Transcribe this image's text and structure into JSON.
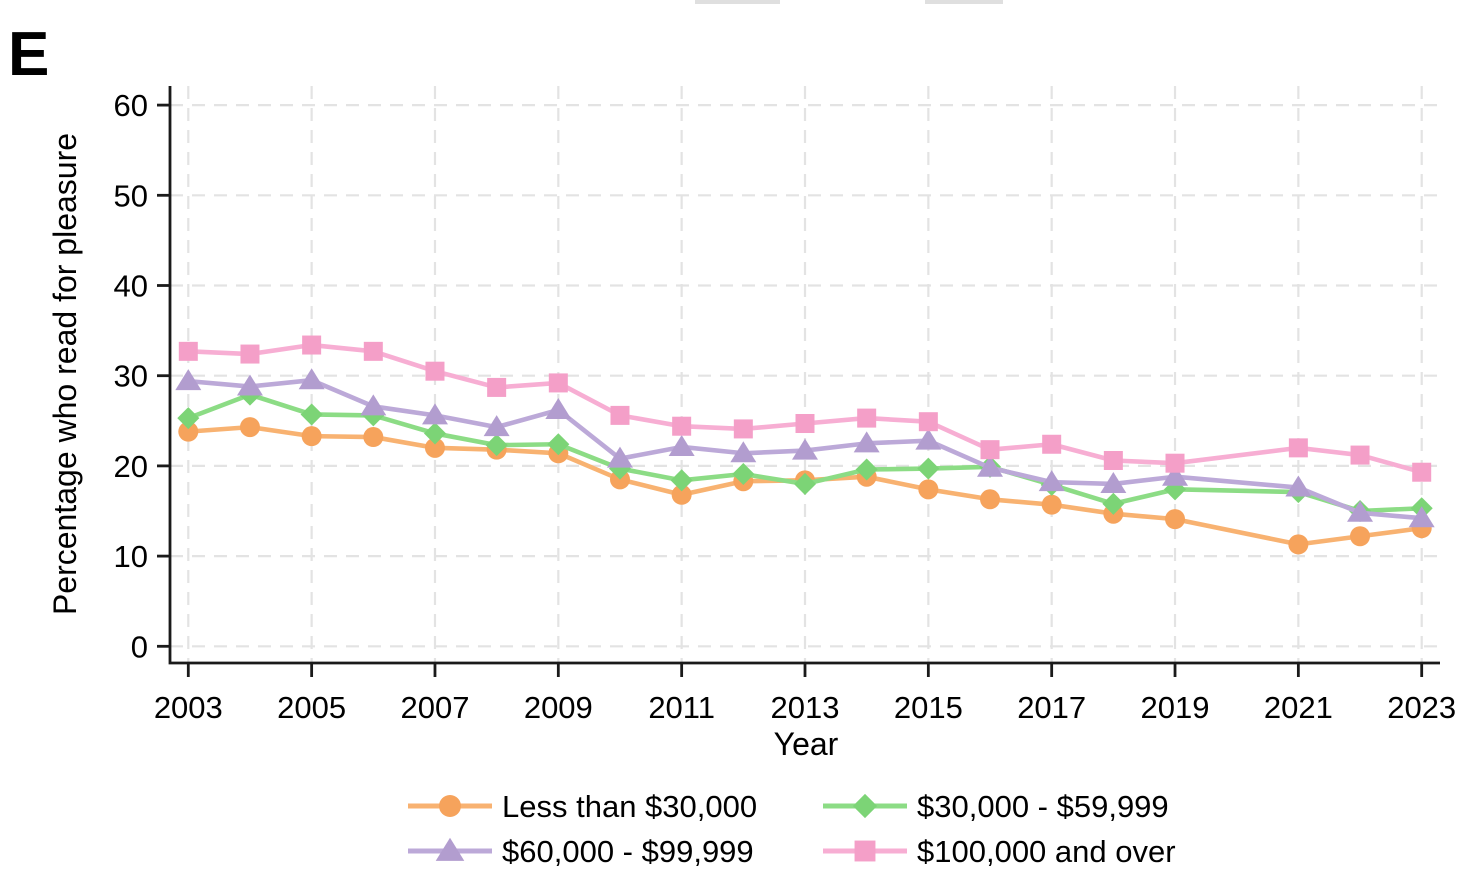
{
  "panel_label": "E",
  "chart_data": {
    "type": "line",
    "title": "",
    "xlabel": "Year",
    "ylabel": "Percentage who read for pleasure",
    "ylim": [
      0,
      60
    ],
    "yticks": [
      0,
      10,
      20,
      30,
      40,
      50,
      60
    ],
    "xticks": [
      2003,
      2005,
      2007,
      2009,
      2011,
      2013,
      2015,
      2017,
      2019,
      2021,
      2023
    ],
    "xlim": [
      2003,
      2023
    ],
    "grid": "dashed horizontal and vertical gridlines",
    "legend_position": "bottom, two columns",
    "x": [
      2003,
      2004,
      2005,
      2006,
      2007,
      2008,
      2009,
      2010,
      2011,
      2012,
      2013,
      2014,
      2015,
      2016,
      2017,
      2018,
      2019,
      2021,
      2022,
      2023
    ],
    "series": [
      {
        "name": "Less than $30,000",
        "marker": "circle",
        "color": "#F6A35C",
        "line_color": "#F8B271",
        "values": [
          23.8,
          24.3,
          23.3,
          23.2,
          22.0,
          21.8,
          21.4,
          18.5,
          16.8,
          18.3,
          18.4,
          18.8,
          17.4,
          16.3,
          15.7,
          14.7,
          14.1,
          11.3,
          12.2,
          13.1
        ]
      },
      {
        "name": "$30,000 - $59,999",
        "marker": "diamond",
        "color": "#7CD476",
        "line_color": "#8CDC85",
        "values": [
          25.3,
          27.9,
          25.7,
          25.6,
          23.6,
          22.3,
          22.4,
          19.7,
          18.4,
          19.1,
          18.0,
          19.6,
          19.7,
          19.9,
          17.9,
          15.8,
          17.4,
          17.1,
          15.0,
          15.3
        ]
      },
      {
        "name": "$60,000 - $99,999",
        "marker": "triangle",
        "color": "#B29DCF",
        "line_color": "#BCA9D8",
        "values": [
          29.4,
          28.8,
          29.5,
          26.6,
          25.6,
          24.3,
          26.2,
          20.8,
          22.1,
          21.4,
          21.7,
          22.5,
          22.8,
          19.8,
          18.2,
          18.0,
          18.8,
          17.6,
          14.8,
          14.2
        ]
      },
      {
        "name": "$100,000 and over",
        "marker": "square",
        "color": "#F49FC8",
        "line_color": "#F7AED3",
        "values": [
          32.7,
          32.4,
          33.4,
          32.7,
          30.5,
          28.7,
          29.2,
          25.6,
          24.4,
          24.1,
          24.7,
          25.3,
          24.9,
          21.8,
          22.4,
          20.6,
          20.3,
          22.0,
          21.2,
          19.3
        ]
      }
    ]
  }
}
